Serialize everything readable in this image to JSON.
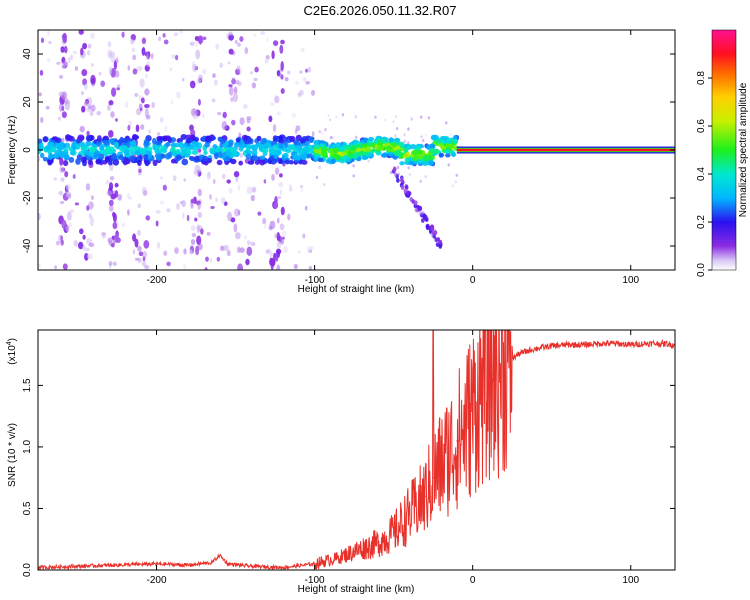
{
  "title": "C2E6.2026.050.11.32.R07",
  "colors": {
    "line": "#e8302a",
    "axis": "#000000",
    "background": "#ffffff"
  },
  "chart_data": [
    {
      "type": "heatmap",
      "title": "C2E6.2026.050.11.32.R07",
      "xlabel": "Height of straight line (km)",
      "ylabel": "Frequency (Hz)",
      "xlim": [
        -275,
        128
      ],
      "ylim": [
        -50,
        50
      ],
      "xticks": [
        -200,
        -100,
        0,
        100
      ],
      "yticks": [
        -40,
        -20,
        0,
        20,
        40
      ],
      "colorbar": {
        "label": "Normalized spectral amplitude",
        "range": [
          0.0,
          1.0
        ],
        "ticks": [
          0.0,
          0.2,
          0.4,
          0.6,
          0.8
        ],
        "colormap": "rainbow (white-violet-blue-cyan-green-yellow-red-magenta)"
      },
      "features": [
        {
          "name": "pre-transition band",
          "x_range": [
            -275,
            -100
          ],
          "freq_center": 0,
          "freq_halfwidth": 5,
          "amplitude": "0.1-0.35"
        },
        {
          "name": "transition band",
          "x_range": [
            -100,
            -10
          ],
          "freq_center": 0,
          "freq_halfwidth": 4,
          "amplitude": "0.3-0.6"
        },
        {
          "name": "descending branch",
          "x_range": [
            -50,
            -20
          ],
          "freq_range": [
            -8,
            -40
          ],
          "amplitude": "0.05-0.2"
        },
        {
          "name": "steady tone",
          "x_range": [
            -10,
            128
          ],
          "freq_center": 0,
          "freq_halfwidth": 2,
          "amplitude": "0.9-1.0"
        }
      ]
    },
    {
      "type": "line",
      "title": "",
      "xlabel": "Height of straight line (km)",
      "ylabel": "SNR (10 * v/v)",
      "scale_label": "(x10",
      "scale_exp": "4",
      "scale_close": ")",
      "xlim": [
        -275,
        128
      ],
      "ylim": [
        0,
        1.95
      ],
      "xticks": [
        -200,
        -100,
        0,
        100
      ],
      "yticks": [
        0.0,
        0.5,
        1.0,
        1.5
      ],
      "series": [
        {
          "name": "SNR",
          "x": [
            -275,
            -250,
            -225,
            -200,
            -180,
            -165,
            -160,
            -155,
            -140,
            -120,
            -100,
            -85,
            -75,
            -60,
            -50,
            -40,
            -30,
            -25,
            -20,
            -15,
            -10,
            -5,
            0,
            5,
            10,
            15,
            20,
            25,
            30,
            40,
            50,
            60,
            70,
            80,
            90,
            100,
            110,
            120,
            128
          ],
          "values": [
            0.02,
            0.03,
            0.04,
            0.05,
            0.04,
            0.06,
            0.12,
            0.05,
            0.03,
            0.02,
            0.05,
            0.1,
            0.15,
            0.22,
            0.3,
            0.45,
            0.6,
            0.75,
            0.85,
            0.95,
            1.05,
            1.15,
            1.3,
            1.45,
            1.55,
            1.62,
            1.68,
            1.72,
            1.76,
            1.8,
            1.82,
            1.83,
            1.83,
            1.84,
            1.84,
            1.83,
            1.84,
            1.84,
            1.83
          ]
        }
      ]
    }
  ]
}
